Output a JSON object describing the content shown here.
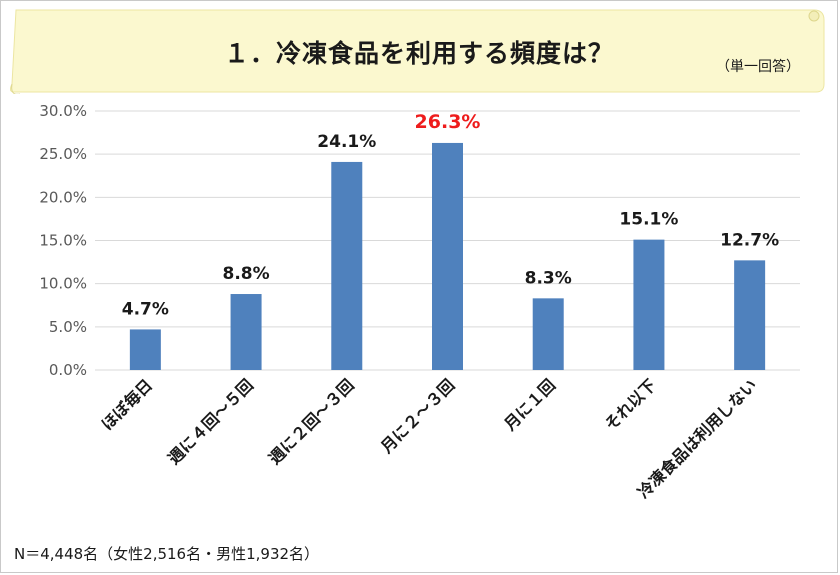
{
  "banner": {
    "title": "１．冷凍食品を利用する頻度は？",
    "note": "（単一回答）"
  },
  "footnote": "N＝4,448名（女性2,516名・男性1,932名）",
  "colors": {
    "bar": "#4f81bd",
    "highlight_label": "#ee1c1c",
    "label": "#1a1a1a",
    "grid": "#d9d9d9",
    "banner": "#fbf8cf"
  },
  "chart_data": {
    "type": "bar",
    "categories": [
      "ほぼ毎日",
      "週に４回～５回",
      "週に２回～３回",
      "月に２～３回",
      "月に１回",
      "それ以下",
      "冷凍食品は利用しない"
    ],
    "values": [
      4.7,
      8.8,
      24.1,
      26.3,
      8.3,
      15.1,
      12.7
    ],
    "data_labels": [
      "4.7%",
      "8.8%",
      "24.1%",
      "26.3%",
      "8.3%",
      "15.1%",
      "12.7%"
    ],
    "highlight_index": 3,
    "ylim": [
      0,
      30
    ],
    "yticks": [
      "0.0%",
      "5.0%",
      "10.0%",
      "15.0%",
      "20.0%",
      "25.0%",
      "30.0%"
    ],
    "grid": true,
    "title": "",
    "xlabel": "",
    "ylabel": ""
  }
}
